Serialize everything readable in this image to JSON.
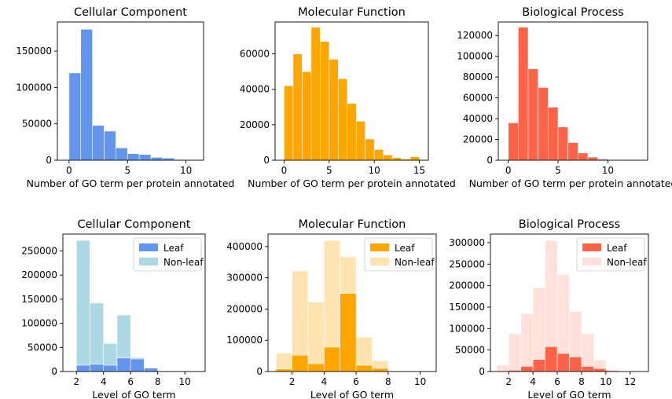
{
  "chart_data": [
    {
      "id": "cc_annot",
      "type": "bar",
      "title": "Cellular Component",
      "xlabel": "Number of GO term per protein annotated",
      "ylabel": "",
      "xlim": [
        -1,
        11.5
      ],
      "ylim": [
        0,
        190000
      ],
      "xticks": [
        0,
        5,
        10
      ],
      "yticks": [
        0,
        50000,
        100000,
        150000
      ],
      "bin_width": 1,
      "series": [
        {
          "color": "#6495ED",
          "opacity": 1,
          "bins": [
            [
              0,
              120000
            ],
            [
              1,
              180000
            ],
            [
              2,
              48000
            ],
            [
              3,
              40000
            ],
            [
              4,
              17000
            ],
            [
              5,
              9000
            ],
            [
              6,
              8000
            ],
            [
              7,
              4000
            ],
            [
              8,
              3000
            ],
            [
              9,
              1000
            ],
            [
              10,
              500
            ]
          ]
        }
      ]
    },
    {
      "id": "mf_annot",
      "type": "bar",
      "title": "Molecular Function",
      "xlabel": "Number of GO term per protein annotated",
      "ylabel": "",
      "xlim": [
        -1,
        16
      ],
      "ylim": [
        0,
        78000
      ],
      "xticks": [
        0,
        5,
        10,
        15
      ],
      "yticks": [
        0,
        20000,
        40000,
        60000
      ],
      "bin_width": 1,
      "series": [
        {
          "color": "#FFA500",
          "opacity": 1,
          "bins": [
            [
              0,
              42000
            ],
            [
              1,
              60000
            ],
            [
              2,
              50000
            ],
            [
              3,
              75000
            ],
            [
              4,
              67000
            ],
            [
              5,
              57000
            ],
            [
              6,
              46000
            ],
            [
              7,
              32000
            ],
            [
              8,
              22000
            ],
            [
              9,
              12000
            ],
            [
              10,
              6000
            ],
            [
              11,
              3000
            ],
            [
              12,
              1500
            ],
            [
              13,
              700
            ],
            [
              14,
              2000
            ]
          ]
        }
      ]
    },
    {
      "id": "bp_annot",
      "type": "bar",
      "title": "Biological Process",
      "xlabel": "Number of GO term per protein annotated",
      "ylabel": "",
      "xlim": [
        -1,
        14
      ],
      "ylim": [
        0,
        133000
      ],
      "xticks": [
        0,
        5,
        10
      ],
      "yticks": [
        0,
        20000,
        40000,
        60000,
        80000,
        100000,
        120000
      ],
      "bin_width": 1,
      "series": [
        {
          "color": "#FF6347",
          "opacity": 1,
          "bins": [
            [
              0,
              36000
            ],
            [
              1,
              128000
            ],
            [
              2,
              88000
            ],
            [
              3,
              70000
            ],
            [
              4,
              51000
            ],
            [
              5,
              32000
            ],
            [
              6,
              17000
            ],
            [
              7,
              7000
            ],
            [
              8,
              3000
            ],
            [
              9,
              1000
            ],
            [
              10,
              500
            ],
            [
              11,
              200
            ]
          ]
        }
      ]
    },
    {
      "id": "cc_level",
      "type": "bar",
      "title": "Cellular Component",
      "xlabel": "Level of GO term",
      "ylabel": "",
      "xlim": [
        1,
        11.5
      ],
      "ylim": [
        0,
        285000
      ],
      "xticks": [
        2,
        4,
        6,
        8,
        10
      ],
      "yticks": [
        0,
        50000,
        100000,
        150000,
        200000,
        250000
      ],
      "bin_width": 1,
      "legend": {
        "loc": "top-right",
        "entries": [
          {
            "label": "Leaf",
            "color": "#6495ED",
            "opacity": 1
          },
          {
            "label": "Non-leaf",
            "color": "#ADD8E6",
            "opacity": 1
          }
        ]
      },
      "series": [
        {
          "name": "Non-leaf",
          "color": "#ADD8E6",
          "opacity": 1,
          "bins": [
            [
              2,
              272000
            ],
            [
              3,
              142000
            ],
            [
              4,
              58000
            ],
            [
              5,
              117000
            ],
            [
              6,
              29000
            ],
            [
              7,
              5000
            ],
            [
              8,
              1000
            ]
          ]
        },
        {
          "name": "Leaf",
          "color": "#6495ED",
          "opacity": 1,
          "bins": [
            [
              2,
              13000
            ],
            [
              3,
              15000
            ],
            [
              4,
              13000
            ],
            [
              5,
              28000
            ],
            [
              6,
              26000
            ],
            [
              7,
              7000
            ],
            [
              8,
              1000
            ]
          ]
        }
      ]
    },
    {
      "id": "mf_level",
      "type": "bar",
      "title": "Molecular Function",
      "xlabel": "Level of GO term",
      "ylabel": "",
      "xlim": [
        0.5,
        11
      ],
      "ylim": [
        0,
        440000
      ],
      "xticks": [
        2,
        4,
        6,
        8,
        10
      ],
      "yticks": [
        0,
        100000,
        200000,
        300000,
        400000
      ],
      "bin_width": 1,
      "legend": {
        "loc": "top-right",
        "entries": [
          {
            "label": "Leaf",
            "color": "#FFA500",
            "opacity": 1
          },
          {
            "label": "Non-leaf",
            "color": "#FFA500",
            "opacity": 0.3
          }
        ]
      },
      "series": [
        {
          "name": "Non-leaf",
          "color": "#FFA500",
          "opacity": 0.3,
          "bins": [
            [
              1,
              58000
            ],
            [
              2,
              322000
            ],
            [
              3,
              222000
            ],
            [
              4,
              420000
            ],
            [
              5,
              367000
            ],
            [
              6,
              110000
            ],
            [
              7,
              35000
            ],
            [
              8,
              2000
            ]
          ]
        },
        {
          "name": "Leaf",
          "color": "#FFA500",
          "opacity": 1,
          "bins": [
            [
              1,
              8000
            ],
            [
              2,
              52000
            ],
            [
              3,
              25000
            ],
            [
              4,
              78000
            ],
            [
              5,
              250000
            ],
            [
              6,
              20000
            ],
            [
              7,
              10000
            ]
          ]
        }
      ]
    },
    {
      "id": "bp_level",
      "type": "bar",
      "title": "Biological Process",
      "xlabel": "Level of GO term",
      "ylabel": "",
      "xlim": [
        0.5,
        13.5
      ],
      "ylim": [
        0,
        320000
      ],
      "xticks": [
        2,
        4,
        6,
        8,
        10,
        12
      ],
      "yticks": [
        0,
        50000,
        100000,
        150000,
        200000,
        250000,
        300000
      ],
      "bin_width": 1,
      "legend": {
        "loc": "top-right",
        "entries": [
          {
            "label": "Leaf",
            "color": "#FF6347",
            "opacity": 1
          },
          {
            "label": "Non-leaf",
            "color": "#FF6347",
            "opacity": 0.2
          }
        ]
      },
      "series": [
        {
          "name": "Non-leaf",
          "color": "#FF6347",
          "opacity": 0.2,
          "bins": [
            [
              1,
              15000
            ],
            [
              2,
              88000
            ],
            [
              3,
              135000
            ],
            [
              4,
              195000
            ],
            [
              5,
              305000
            ],
            [
              6,
              225000
            ],
            [
              7,
              140000
            ],
            [
              8,
              88000
            ],
            [
              9,
              27000
            ],
            [
              10,
              4000
            ]
          ]
        },
        {
          "name": "Leaf",
          "color": "#FF6347",
          "opacity": 1,
          "bins": [
            [
              2,
              3000
            ],
            [
              3,
              12000
            ],
            [
              4,
              28000
            ],
            [
              5,
              58000
            ],
            [
              6,
              42000
            ],
            [
              7,
              34000
            ],
            [
              8,
              12000
            ],
            [
              9,
              7000
            ],
            [
              10,
              2000
            ]
          ]
        }
      ]
    }
  ]
}
